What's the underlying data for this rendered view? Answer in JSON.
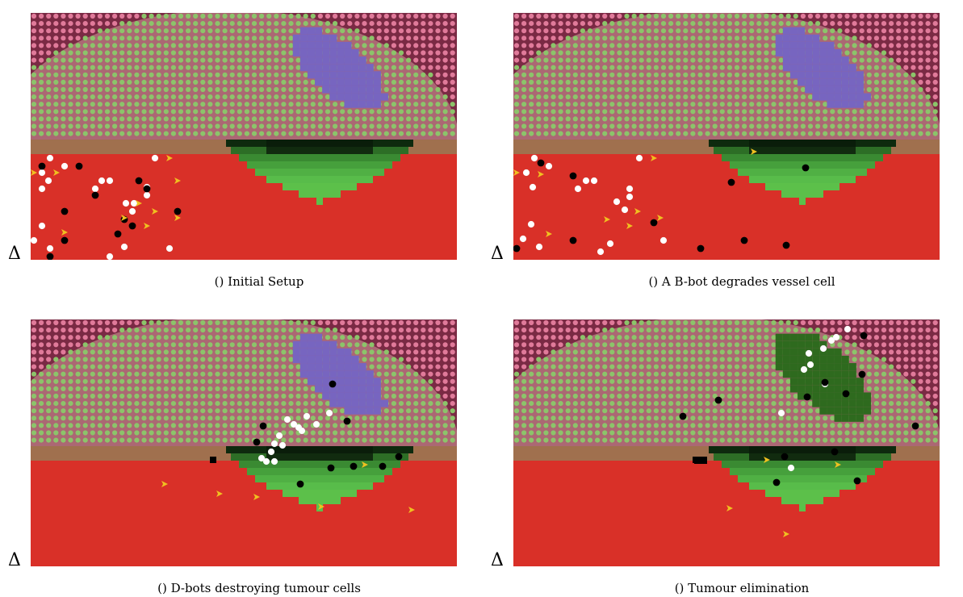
{
  "panels": [
    {
      "id": "a",
      "caption": "() Initial Setup",
      "delta": "Δ",
      "stage": 0
    },
    {
      "id": "b",
      "caption": "() A B-bot degrades vessel cell",
      "delta": "Δ",
      "stage": 1
    },
    {
      "id": "c",
      "caption": "() D-bots destroying tumour cells",
      "delta": "Δ",
      "stage": 2
    },
    {
      "id": "d",
      "caption": "() Tumour elimination",
      "delta": "Δ",
      "stage": 3
    }
  ],
  "colors": {
    "tissue_bg": "#7a2a44",
    "tissue_cell": "#e07a9a",
    "tumour_zone_bg": "#d49a9a",
    "tumour_zone_cell": "#8cc46a",
    "tumour_core": "#7765c0",
    "tumour_core_cell": "#8a7ad0",
    "dead_tumour": "#2e6a1e",
    "vessel_wall": "#a0704e",
    "blood": "#d93028",
    "leak_light": "#5cc04a",
    "leak_dark": "#0e2a0e",
    "white_bot": "#ffffff",
    "black_bot": "#000000",
    "yellow_bot": "#f0c020"
  }
}
